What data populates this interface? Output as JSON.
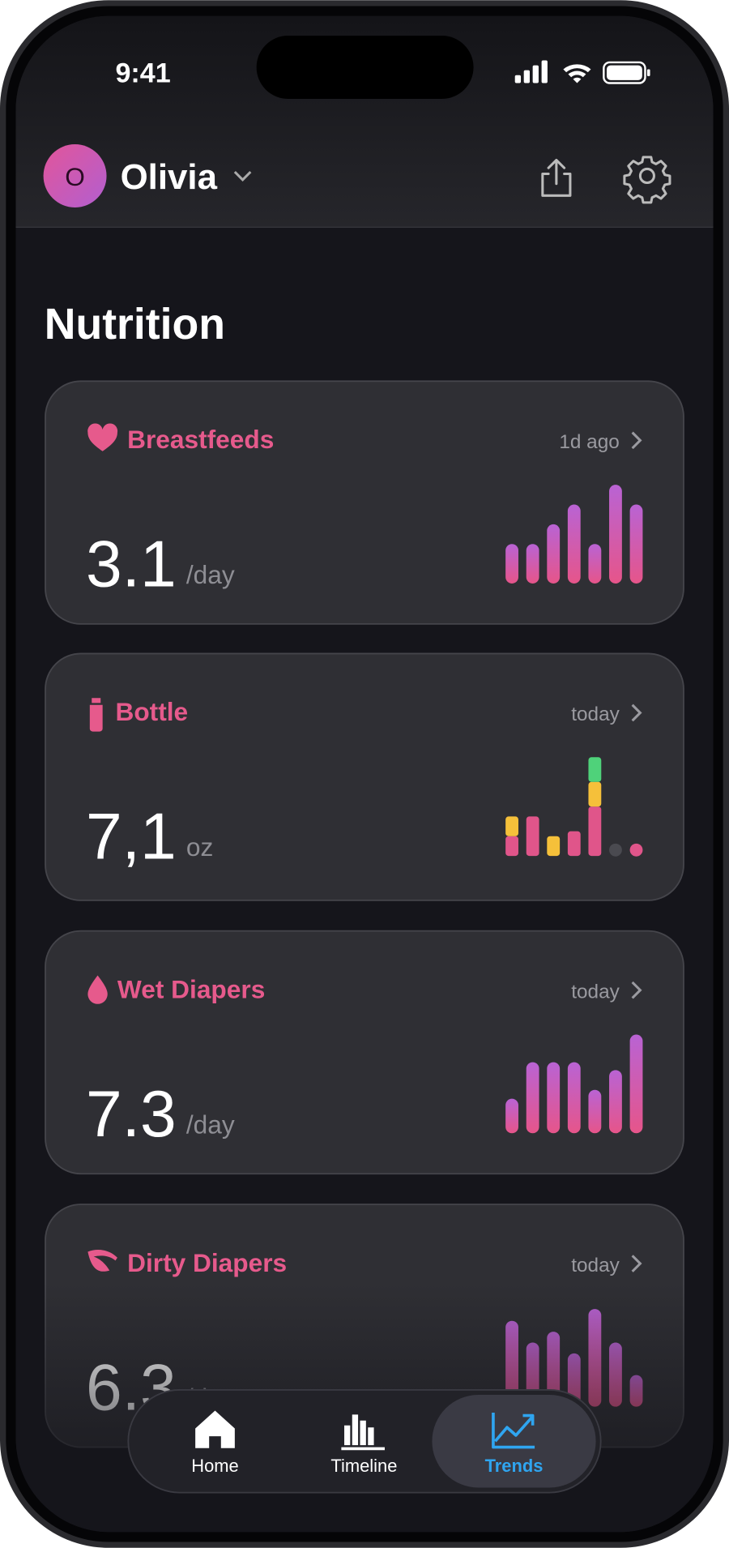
{
  "status": {
    "time": "9:41"
  },
  "header": {
    "profile_initial": "O",
    "profile_name": "Olivia"
  },
  "section_title": "Nutrition",
  "cards": [
    {
      "title": "Breastfeeds",
      "time": "1d ago",
      "value": "3.1",
      "unit": "/day",
      "bars": [
        4,
        4,
        6,
        8,
        4,
        10,
        8
      ]
    },
    {
      "title": "Bottle",
      "time": "today",
      "value": "7,1",
      "unit": "oz",
      "stacked_bars": [
        [
          {
            "color": "#e0558a",
            "value": 2
          },
          {
            "color": "#f5c03a",
            "value": 2
          }
        ],
        [
          {
            "color": "#e0558a",
            "value": 4
          }
        ],
        [
          {
            "color": "#f5c03a",
            "value": 2
          }
        ],
        [
          {
            "color": "#e0558a",
            "value": 2.5
          }
        ],
        [
          {
            "color": "#e0558a",
            "value": 5
          },
          {
            "color": "#f5c03a",
            "value": 2.5
          },
          {
            "color": "#4fd27a",
            "value": 2.5
          }
        ],
        [
          {
            "color": "#4a4a50",
            "value": 0
          }
        ],
        [
          {
            "color": "#e0558a",
            "value": 0
          }
        ]
      ]
    },
    {
      "title": "Wet Diapers",
      "time": "today",
      "value": "7.3",
      "unit": "/day",
      "bars": [
        3.5,
        7.2,
        7.2,
        7.2,
        4.4,
        6.4,
        10
      ]
    },
    {
      "title": "Dirty Diapers",
      "time": "today",
      "value": "6.3",
      "unit": "/day",
      "bars": [
        8.7,
        6.5,
        7.6,
        5.4,
        9.9,
        6.5,
        3.2
      ]
    }
  ],
  "nav": {
    "items": [
      {
        "label": "Home"
      },
      {
        "label": "Timeline"
      },
      {
        "label": "Trends",
        "active": true
      }
    ]
  }
}
